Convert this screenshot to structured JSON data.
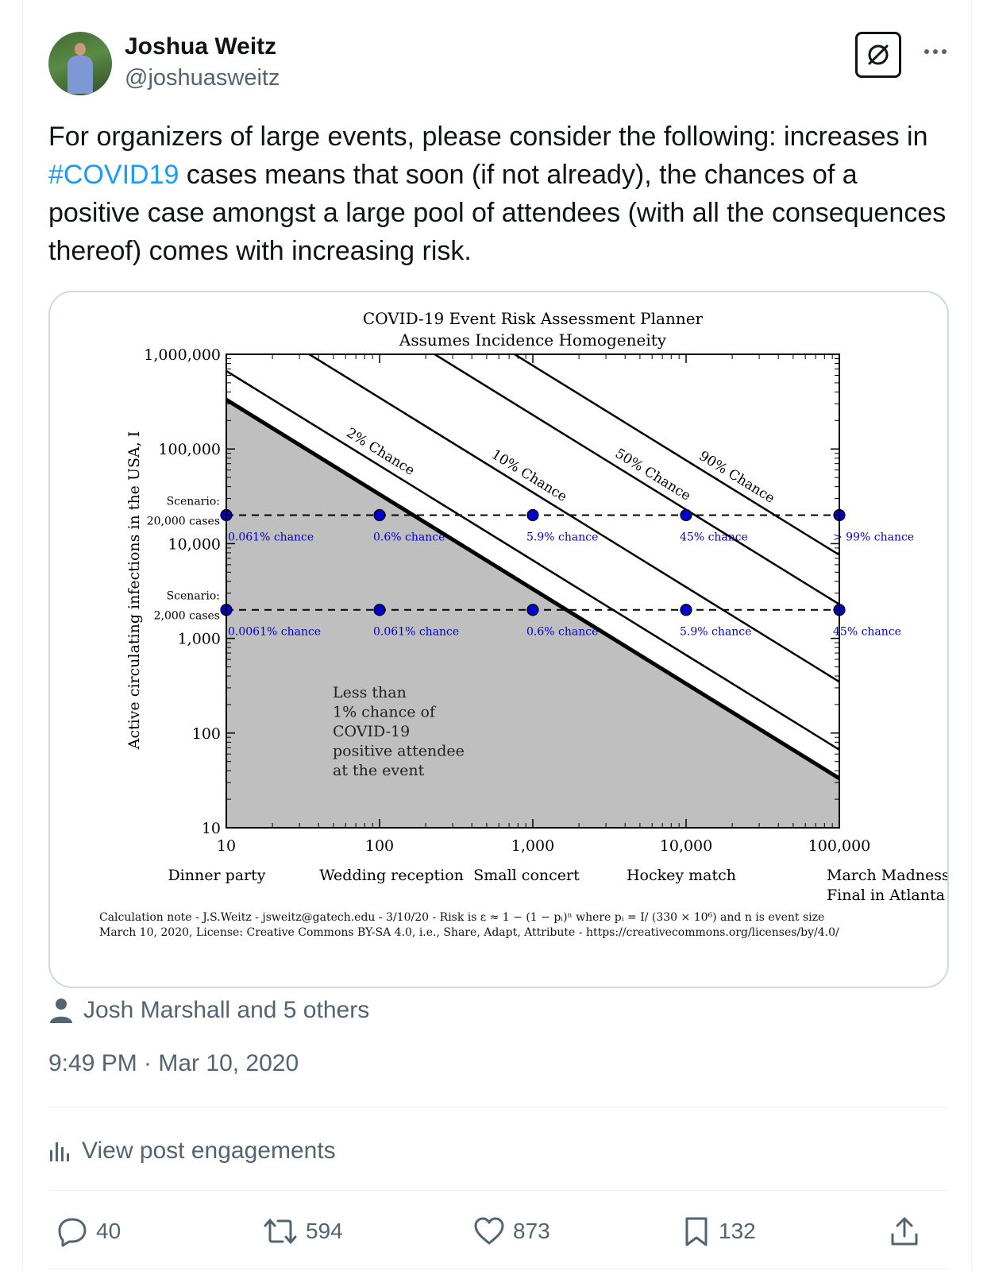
{
  "author": {
    "name": "Joshua Weitz",
    "handle": "@joshuasweitz"
  },
  "post": {
    "text_before": "For organizers of large events, please consider the following: increases in ",
    "hashtag": "#COVID19",
    "text_after": " cases means that soon (if not already), the chances of a positive case amongst a large pool of attendees (with all the consequences thereof) comes with increasing risk."
  },
  "social_context": "Josh Marshall and 5 others",
  "timestamp": "9:49 PM · Mar 10, 2020",
  "engagements_label": "View post engagements",
  "actions": {
    "replies": "40",
    "reposts": "594",
    "likes": "873",
    "bookmarks": "132"
  },
  "icons": {
    "more": "more-icon",
    "grok": "grok-icon",
    "person": "person-icon",
    "engagements": "bar-chart-icon",
    "reply": "reply-icon",
    "repost": "repost-icon",
    "like": "heart-icon",
    "bookmark": "bookmark-icon",
    "share": "share-icon"
  },
  "colors": {
    "hashtag": "#1d9bf0",
    "secondary_text": "#536471",
    "chart_dots": "#0000cc",
    "shaded_region": "#bfbfbf"
  },
  "chart_data": {
    "type": "line",
    "title": "COVID-19 Event Risk Assessment Planner",
    "subtitle": "Assumes Incidence Homogeneity",
    "xlabel": "",
    "ylabel": "Active circulating infections in the USA, I",
    "x_scale": "log",
    "y_scale": "log",
    "xlim": [
      10,
      100000
    ],
    "ylim": [
      10,
      1000000
    ],
    "x_ticks": [
      10,
      100,
      1000,
      10000,
      100000
    ],
    "x_tick_labels": [
      "10",
      "100",
      "1,000",
      "10,000",
      "100,000"
    ],
    "y_ticks": [
      10,
      100,
      1000,
      10000,
      100000,
      1000000
    ],
    "y_tick_labels": [
      "10",
      "100",
      "1,000",
      "10,000",
      "100,000",
      "1,000,000"
    ],
    "event_labels": [
      {
        "x": 10,
        "label": "Dinner party"
      },
      {
        "x": 100,
        "label": "Wedding reception"
      },
      {
        "x": 1000,
        "label": "Small concert"
      },
      {
        "x": 10000,
        "label": "Hockey match"
      },
      {
        "x": 100000,
        "label": "March Madness Final in Atlanta"
      }
    ],
    "population": 330000000,
    "series": [
      {
        "name": "1% Chance (shaded boundary)",
        "risk": 0.01,
        "thick": true
      },
      {
        "name": "2% Chance",
        "risk": 0.02
      },
      {
        "name": "10% Chance",
        "risk": 0.1
      },
      {
        "name": "50% Chance",
        "risk": 0.5
      },
      {
        "name": "90% Chance",
        "risk": 0.9
      }
    ],
    "scenarios": [
      {
        "label_1": "Scenario:",
        "label_2": "20,000 cases",
        "I": 20000,
        "points": [
          {
            "x": 10,
            "label": "0.061% chance"
          },
          {
            "x": 100,
            "label": "0.6% chance"
          },
          {
            "x": 1000,
            "label": "5.9% chance"
          },
          {
            "x": 10000,
            "label": "45% chance"
          },
          {
            "x": 100000,
            "label": "> 99% chance"
          }
        ]
      },
      {
        "label_1": "Scenario:",
        "label_2": "2,000 cases",
        "I": 2000,
        "points": [
          {
            "x": 10,
            "label": "0.0061% chance"
          },
          {
            "x": 100,
            "label": "0.061% chance"
          },
          {
            "x": 1000,
            "label": "0.6% chance"
          },
          {
            "x": 10000,
            "label": "5.9% chance"
          },
          {
            "x": 100000,
            "label": "45% chance"
          }
        ]
      }
    ],
    "region_text": [
      "Less than",
      "1% chance of",
      "COVID-19",
      "positive attendee",
      "at the event"
    ],
    "footnote_1": "Calculation note - J.S.Weitz - jsweitz@gatech.edu - 3/10/20 - Risk is ε ≈ 1 − (1 − pᵢ)ⁿ where pᵢ = I/ (330 × 10⁶) and n is event size",
    "footnote_2": "March 10, 2020, License: Creative Commons BY-SA 4.0, i.e., Share, Adapt, Attribute - https://creativecommons.org/licenses/by/4.0/"
  }
}
